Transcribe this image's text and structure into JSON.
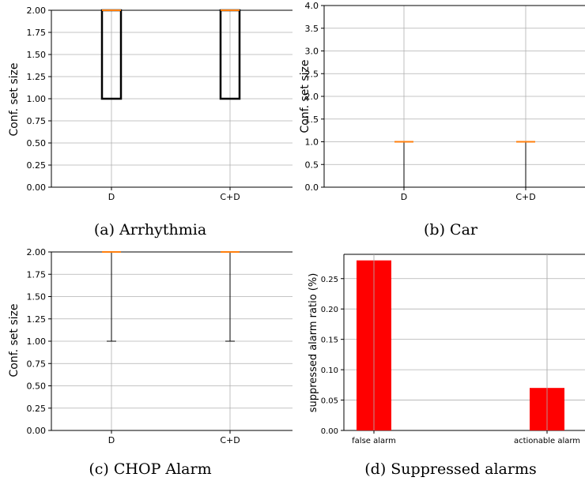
{
  "chart_data": [
    {
      "type": "boxplot",
      "caption": "(a) Arrhythmia",
      "ylabel": "Conf. set size",
      "ylim": [
        0,
        2.0
      ],
      "yticks": [
        "0.00",
        "0.25",
        "0.50",
        "0.75",
        "1.00",
        "1.25",
        "1.50",
        "1.75",
        "2.00"
      ],
      "ytick_values": [
        0,
        0.25,
        0.5,
        0.75,
        1.0,
        1.25,
        1.5,
        1.75,
        2.0
      ],
      "grid": true,
      "categories": [
        "D",
        "C+D"
      ],
      "boxes": [
        {
          "category": "D",
          "whislo": 1.0,
          "q1": 1.0,
          "median": 2.0,
          "q3": 2.0,
          "whishi": 2.0
        },
        {
          "category": "C+D",
          "whislo": 1.0,
          "q1": 1.0,
          "median": 2.0,
          "q3": 2.0,
          "whishi": 2.0
        }
      ]
    },
    {
      "type": "boxplot",
      "caption": "(b) Car",
      "ylabel": "Conf. set size",
      "ylim": [
        0,
        4.0
      ],
      "yticks": [
        "0.0",
        "0.5",
        "1.0",
        "1.5",
        "2.0",
        "2.5",
        "3.0",
        "3.5",
        "4.0"
      ],
      "ytick_values": [
        0,
        0.5,
        1.0,
        1.5,
        2.0,
        2.5,
        3.0,
        3.5,
        4.0
      ],
      "grid": true,
      "categories": [
        "D",
        "C+D"
      ],
      "boxes": [
        {
          "category": "D",
          "whislo": 0.0,
          "q1": 1.0,
          "median": 1.0,
          "q3": 1.0,
          "whishi": 1.0
        },
        {
          "category": "C+D",
          "whislo": 0.0,
          "q1": 1.0,
          "median": 1.0,
          "q3": 1.0,
          "whishi": 1.0
        }
      ]
    },
    {
      "type": "boxplot",
      "caption": "(c) CHOP Alarm",
      "ylabel": "Conf. set size",
      "ylim": [
        0,
        2.0
      ],
      "yticks": [
        "0.00",
        "0.25",
        "0.50",
        "0.75",
        "1.00",
        "1.25",
        "1.50",
        "1.75",
        "2.00"
      ],
      "ytick_values": [
        0,
        0.25,
        0.5,
        0.75,
        1.0,
        1.25,
        1.5,
        1.75,
        2.0
      ],
      "grid": true,
      "categories": [
        "D",
        "C+D"
      ],
      "boxes": [
        {
          "category": "D",
          "whislo": 1.0,
          "q1": 2.0,
          "median": 2.0,
          "q3": 2.0,
          "whishi": 2.0
        },
        {
          "category": "C+D",
          "whislo": 1.0,
          "q1": 2.0,
          "median": 2.0,
          "q3": 2.0,
          "whishi": 2.0
        }
      ]
    },
    {
      "type": "bar",
      "caption": "(d) Suppressed alarms",
      "ylabel": "suppressed alarm ratio (%)",
      "ylim": [
        0,
        0.29
      ],
      "yticks": [
        "0.00",
        "0.05",
        "0.10",
        "0.15",
        "0.20",
        "0.25"
      ],
      "ytick_values": [
        0,
        0.05,
        0.1,
        0.15,
        0.2,
        0.25
      ],
      "grid": true,
      "categories": [
        "false alarm",
        "actionable alarm"
      ],
      "values": [
        0.28,
        0.07
      ],
      "color": "#ff0000"
    }
  ],
  "colors": {
    "median": "#ff7f0e",
    "grid": "#b0b0b0",
    "box": "#000000"
  }
}
